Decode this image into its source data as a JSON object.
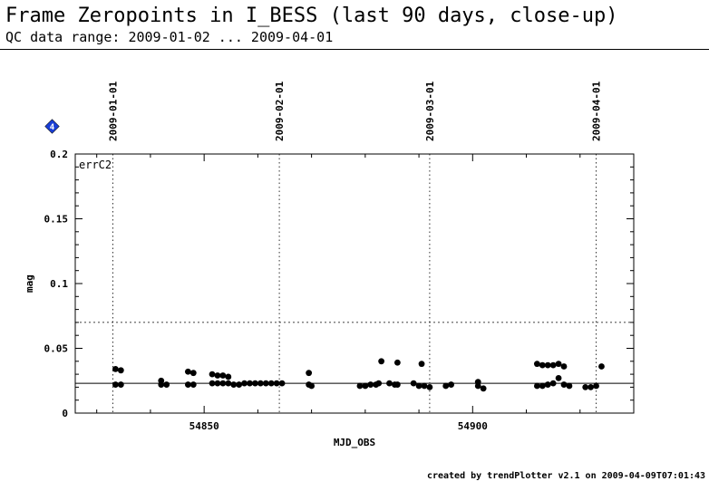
{
  "header": {
    "title": "Frame Zeropoints in I_BESS (last 90 days, close-up)",
    "subtitle": "QC data range: 2009-01-02 ... 2009-04-01"
  },
  "footer": {
    "credit": "created by trendPlotter v2.1 on 2009-04-09T07:01:43"
  },
  "marker_badge": {
    "label": "4",
    "color": "#1a3fd6"
  },
  "chart_data": {
    "type": "scatter",
    "panel_label": "errC2",
    "xlabel": "MJD_OBS",
    "ylabel": "mag",
    "xlim": [
      54826,
      54930
    ],
    "ylim": [
      0,
      0.2
    ],
    "grid": false,
    "x_ticks": [
      54850,
      54900
    ],
    "y_ticks": [
      {
        "value": 0,
        "label": "0"
      },
      {
        "value": 0.05,
        "label": "0.05"
      },
      {
        "value": 0.1,
        "label": "0.1"
      },
      {
        "value": 0.15,
        "label": "0.15"
      },
      {
        "value": 0.2,
        "label": "0.2"
      }
    ],
    "reference_line": 0.023,
    "threshold_line": 0.07,
    "date_markers": [
      {
        "mjd": 54833,
        "label": "2009-01-01"
      },
      {
        "mjd": 54864,
        "label": "2009-02-01"
      },
      {
        "mjd": 54892,
        "label": "2009-03-01"
      },
      {
        "mjd": 54923,
        "label": "2009-04-01"
      }
    ],
    "points": [
      [
        54833.5,
        0.034
      ],
      [
        54834.5,
        0.033
      ],
      [
        54833.5,
        0.022
      ],
      [
        54834.5,
        0.022
      ],
      [
        54842,
        0.025
      ],
      [
        54843,
        0.022
      ],
      [
        54842,
        0.022
      ],
      [
        54847,
        0.032
      ],
      [
        54848,
        0.031
      ],
      [
        54847,
        0.022
      ],
      [
        54848,
        0.022
      ],
      [
        54851.5,
        0.03
      ],
      [
        54852.5,
        0.029
      ],
      [
        54853.5,
        0.029
      ],
      [
        54854.5,
        0.028
      ],
      [
        54851.5,
        0.023
      ],
      [
        54852.5,
        0.023
      ],
      [
        54853.5,
        0.023
      ],
      [
        54854.5,
        0.023
      ],
      [
        54855.5,
        0.022
      ],
      [
        54856.5,
        0.022
      ],
      [
        54857.5,
        0.023
      ],
      [
        54858.5,
        0.023
      ],
      [
        54859.5,
        0.023
      ],
      [
        54860.5,
        0.023
      ],
      [
        54861.5,
        0.023
      ],
      [
        54862.5,
        0.023
      ],
      [
        54863.5,
        0.023
      ],
      [
        54864.5,
        0.023
      ],
      [
        54869.5,
        0.031
      ],
      [
        54869.5,
        0.022
      ],
      [
        54870,
        0.021
      ],
      [
        54879,
        0.021
      ],
      [
        54880,
        0.021
      ],
      [
        54881,
        0.022
      ],
      [
        54882,
        0.022
      ],
      [
        54882.5,
        0.023
      ],
      [
        54883,
        0.04
      ],
      [
        54884.5,
        0.023
      ],
      [
        54885.5,
        0.022
      ],
      [
        54886,
        0.039
      ],
      [
        54886,
        0.022
      ],
      [
        54889,
        0.023
      ],
      [
        54890,
        0.021
      ],
      [
        54890.5,
        0.038
      ],
      [
        54891,
        0.021
      ],
      [
        54892,
        0.02
      ],
      [
        54895,
        0.021
      ],
      [
        54896,
        0.022
      ],
      [
        54901,
        0.024
      ],
      [
        54901,
        0.021
      ],
      [
        54902,
        0.019
      ],
      [
        54912,
        0.038
      ],
      [
        54913,
        0.037
      ],
      [
        54914,
        0.037
      ],
      [
        54915,
        0.037
      ],
      [
        54916,
        0.038
      ],
      [
        54917,
        0.036
      ],
      [
        54912,
        0.021
      ],
      [
        54913,
        0.021
      ],
      [
        54914,
        0.022
      ],
      [
        54915,
        0.023
      ],
      [
        54916,
        0.027
      ],
      [
        54917,
        0.022
      ],
      [
        54918,
        0.021
      ],
      [
        54921,
        0.02
      ],
      [
        54922,
        0.02
      ],
      [
        54923,
        0.021
      ],
      [
        54924,
        0.036
      ]
    ]
  }
}
